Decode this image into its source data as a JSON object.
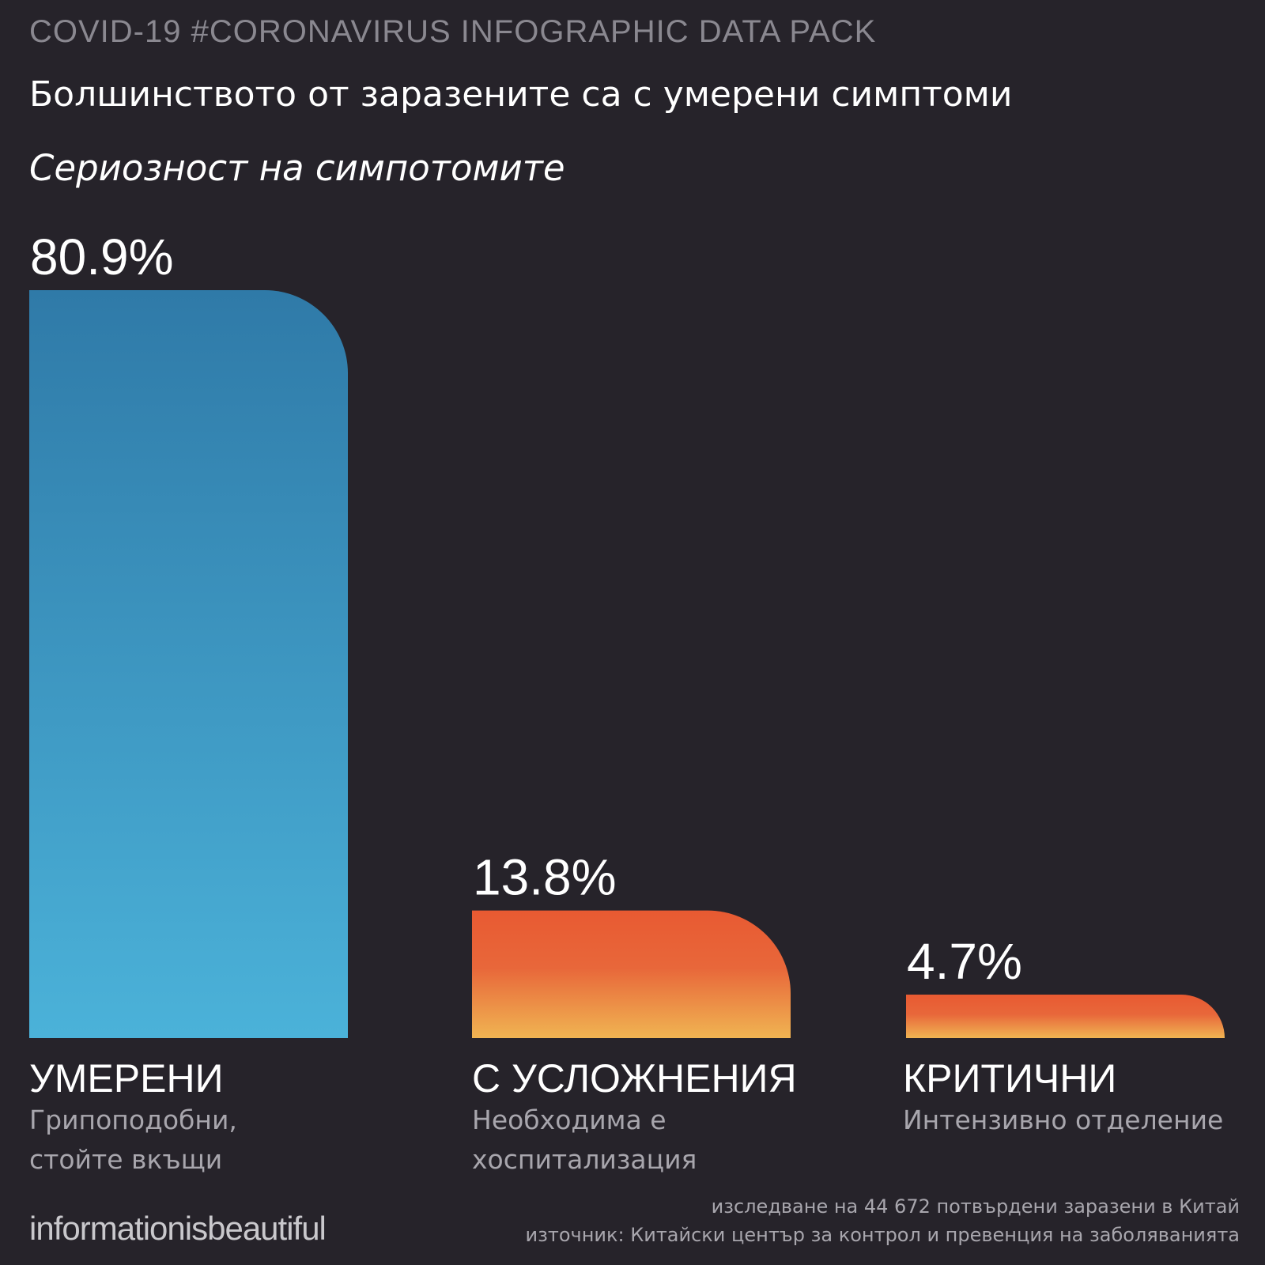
{
  "header": {
    "tag": "COVID-19 #CORONAVIRUS INFOGRAPHIC DATA PACK",
    "headline": "Болшинството от заразените са с умерени симптоми",
    "subtitle": "Сериозност на симпотомите"
  },
  "chart_data": {
    "type": "bar",
    "title": "Сериозност на симпотомите",
    "categories": [
      "УМЕРЕНИ",
      "С УСЛОЖНЕНИЯ",
      "КРИТИЧНИ"
    ],
    "values": [
      80.9,
      13.8,
      4.7
    ],
    "value_labels": [
      "80.9%",
      "13.8%",
      "4.7%"
    ],
    "descriptions": [
      "Грипоподобни, стойте вкъщи",
      "Необходима е хоспитализация",
      "Интензивно отделение"
    ],
    "unit": "%",
    "ylim": [
      0,
      80.9
    ],
    "xlabel": "",
    "ylabel": "",
    "grid": false,
    "colors": {
      "mild": [
        "#2f7aa8",
        "#4bb2d9"
      ],
      "severe": [
        "#e85a32",
        "#e8673a",
        "#f0b452"
      ]
    }
  },
  "footer": {
    "logo": "informationisbeautiful",
    "study": "изследване на 44 672 потвърдени заразени в Китай",
    "source": "източник: Китайски център за контрол и превенция на заболяванията"
  }
}
